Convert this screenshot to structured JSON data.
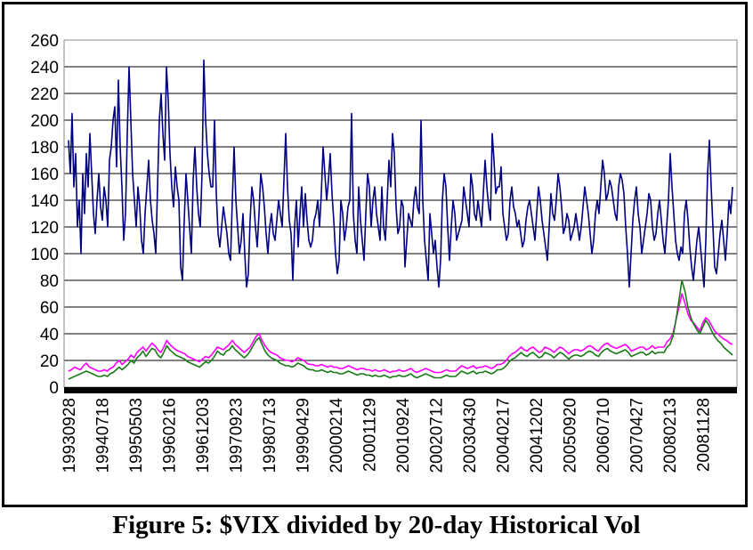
{
  "caption": "Figure 5: $VIX divided by 20-day Historical Vol",
  "chart_data": {
    "type": "line",
    "title": "",
    "xlabel": "",
    "ylabel": "",
    "ylim": [
      0,
      260
    ],
    "yticks": [
      0,
      20,
      40,
      60,
      80,
      100,
      120,
      140,
      160,
      180,
      200,
      220,
      240,
      260
    ],
    "grid": "horizontal",
    "x_tick_labels": [
      "19930928",
      "19940718",
      "19950503",
      "19960216",
      "19961203",
      "19970923",
      "19980713",
      "19990429",
      "20000214",
      "20001129",
      "20010924",
      "20020712",
      "20030430",
      "20040217",
      "20041202",
      "20050920",
      "20060710",
      "20070427",
      "20080213",
      "20081128"
    ],
    "series": [
      {
        "color": "#000080",
        "values": [
          185,
          160,
          205,
          150,
          175,
          120,
          140,
          100,
          160,
          130,
          175,
          150,
          190,
          160,
          130,
          115,
          140,
          160,
          135,
          125,
          150,
          140,
          120,
          170,
          180,
          200,
          210,
          165,
          230,
          180,
          150,
          110,
          130,
          190,
          240,
          200,
          160,
          140,
          120,
          150,
          135,
          110,
          100,
          130,
          150,
          170,
          140,
          125,
          115,
          100,
          150,
          200,
          220,
          190,
          170,
          240,
          215,
          175,
          150,
          135,
          165,
          150,
          140,
          90,
          80,
          125,
          160,
          140,
          120,
          100,
          155,
          180,
          150,
          130,
          120,
          160,
          245,
          200,
          175,
          160,
          150,
          150,
          200,
          145,
          115,
          105,
          120,
          135,
          125,
          115,
          100,
          95,
          140,
          180,
          140,
          120,
          100,
          110,
          130,
          100,
          75,
          85,
          125,
          150,
          140,
          120,
          105,
          130,
          160,
          150,
          135,
          115,
          100,
          120,
          130,
          115,
          110,
          125,
          140,
          130,
          120,
          155,
          190,
          150,
          125,
          115,
          80,
          120,
          140,
          105,
          130,
          150,
          120,
          145,
          125,
          110,
          105,
          110,
          125,
          130,
          140,
          120,
          145,
          180,
          160,
          140,
          155,
          175,
          145,
          125,
          100,
          85,
          95,
          140,
          130,
          110,
          120,
          135,
          140,
          205,
          130,
          110,
          100,
          150,
          125,
          110,
          95,
          130,
          160,
          150,
          120,
          140,
          150,
          130,
          120,
          110,
          150,
          120,
          110,
          140,
          170,
          150,
          190,
          175,
          135,
          115,
          120,
          140,
          135,
          90,
          110,
          130,
          125,
          120,
          140,
          150,
          135,
          130,
          200,
          140,
          110,
          95,
          80,
          130,
          115,
          100,
          110,
          90,
          75,
          95,
          140,
          160,
          150,
          120,
          95,
          120,
          140,
          130,
          110,
          115,
          120,
          125,
          150,
          140,
          130,
          120,
          160,
          150,
          130,
          125,
          140,
          130,
          120,
          145,
          170,
          150,
          135,
          125,
          190,
          170,
          145,
          150,
          150,
          165,
          130,
          120,
          110,
          115,
          140,
          150,
          135,
          130,
          120,
          125,
          115,
          105,
          110,
          125,
          135,
          140,
          130,
          120,
          110,
          130,
          150,
          140,
          125,
          115,
          105,
          95,
          120,
          145,
          130,
          125,
          140,
          160,
          150,
          135,
          115,
          120,
          130,
          125,
          110,
          115,
          120,
          130,
          120,
          110,
          120,
          135,
          150,
          140,
          130,
          115,
          100,
          110,
          130,
          140,
          130,
          150,
          170,
          160,
          140,
          145,
          155,
          150,
          140,
          130,
          125,
          150,
          160,
          155,
          145,
          120,
          100,
          75,
          100,
          125,
          140,
          150,
          130,
          120,
          100,
          110,
          120,
          130,
          145,
          140,
          120,
          110,
          115,
          130,
          140,
          125,
          110,
          100,
          120,
          140,
          175,
          150,
          130,
          110,
          100,
          95,
          105,
          100,
          130,
          140,
          125,
          105,
          90,
          80,
          95,
          110,
          120,
          105,
          90,
          75,
          110,
          160,
          185,
          150,
          120,
          90,
          85,
          100,
          115,
          125,
          110,
          95,
          115,
          140,
          130,
          150
        ]
      },
      {
        "color": "#ff00ff",
        "values": [
          12,
          13,
          15,
          14,
          13,
          16,
          18,
          15,
          14,
          13,
          12,
          12,
          13,
          12,
          14,
          15,
          18,
          20,
          17,
          19,
          21,
          24,
          22,
          26,
          28,
          30,
          27,
          30,
          33,
          31,
          28,
          26,
          30,
          35,
          32,
          30,
          28,
          27,
          26,
          25,
          23,
          22,
          21,
          20,
          19,
          21,
          23,
          22,
          24,
          27,
          30,
          29,
          28,
          30,
          32,
          35,
          32,
          30,
          28,
          26,
          28,
          30,
          34,
          38,
          40,
          35,
          31,
          28,
          26,
          25,
          24,
          22,
          21,
          20,
          20,
          19,
          20,
          22,
          21,
          20,
          18,
          17,
          17,
          16,
          16,
          17,
          16,
          15,
          16,
          15,
          15,
          14,
          14,
          15,
          16,
          15,
          14,
          13,
          14,
          14,
          13,
          13,
          12,
          13,
          12,
          12,
          13,
          12,
          11,
          12,
          12,
          13,
          12,
          12,
          13,
          14,
          12,
          11,
          12,
          13,
          14,
          13,
          12,
          11,
          11,
          11,
          12,
          13,
          12,
          12,
          12,
          14,
          16,
          15,
          14,
          15,
          16,
          14,
          15,
          15,
          16,
          15,
          14,
          15,
          17,
          17,
          18,
          20,
          23,
          25,
          26,
          28,
          30,
          28,
          27,
          29,
          30,
          28,
          26,
          27,
          30,
          29,
          28,
          26,
          28,
          30,
          29,
          27,
          25,
          27,
          28,
          28,
          27,
          28,
          30,
          31,
          30,
          28,
          27,
          30,
          32,
          33,
          31,
          30,
          29,
          30,
          31,
          32,
          30,
          27,
          28,
          29,
          30,
          30,
          28,
          29,
          31,
          29,
          30,
          30,
          30,
          34,
          36,
          40,
          50,
          60,
          70,
          63,
          55,
          50,
          48,
          45,
          42,
          48,
          52,
          50,
          46,
          42,
          40,
          38,
          36,
          35,
          33,
          32
        ]
      },
      {
        "color": "#1a7a1a",
        "values": [
          6,
          7,
          8,
          9,
          10,
          11,
          12,
          11,
          10,
          9,
          8,
          8,
          9,
          8,
          10,
          11,
          13,
          15,
          13,
          15,
          17,
          20,
          18,
          22,
          24,
          27,
          23,
          26,
          29,
          28,
          24,
          22,
          26,
          31,
          28,
          26,
          24,
          23,
          22,
          21,
          19,
          18,
          17,
          16,
          15,
          17,
          19,
          18,
          20,
          23,
          27,
          25,
          24,
          27,
          28,
          31,
          28,
          26,
          24,
          22,
          24,
          27,
          31,
          35,
          37,
          32,
          27,
          24,
          22,
          21,
          20,
          18,
          17,
          16,
          16,
          15,
          16,
          18,
          17,
          16,
          14,
          13,
          13,
          12,
          12,
          13,
          12,
          11,
          12,
          11,
          11,
          10,
          10,
          11,
          12,
          11,
          10,
          9,
          10,
          10,
          9,
          9,
          8,
          9,
          8,
          8,
          9,
          8,
          7,
          8,
          8,
          9,
          8,
          8,
          9,
          10,
          8,
          7,
          8,
          9,
          10,
          9,
          8,
          7,
          7,
          7,
          8,
          9,
          8,
          8,
          8,
          10,
          12,
          11,
          10,
          11,
          12,
          10,
          11,
          11,
          12,
          11,
          10,
          11,
          13,
          13,
          14,
          16,
          19,
          21,
          22,
          24,
          26,
          24,
          23,
          25,
          26,
          24,
          22,
          23,
          26,
          25,
          24,
          22,
          24,
          26,
          25,
          23,
          21,
          23,
          24,
          24,
          23,
          24,
          26,
          27,
          26,
          24,
          23,
          26,
          28,
          29,
          27,
          26,
          25,
          26,
          27,
          28,
          26,
          23,
          24,
          25,
          26,
          26,
          24,
          25,
          27,
          25,
          26,
          26,
          26,
          30,
          32,
          38,
          50,
          65,
          80,
          72,
          60,
          52,
          47,
          43,
          40,
          45,
          50,
          47,
          42,
          38,
          35,
          33,
          30,
          28,
          26,
          24
        ]
      }
    ]
  }
}
